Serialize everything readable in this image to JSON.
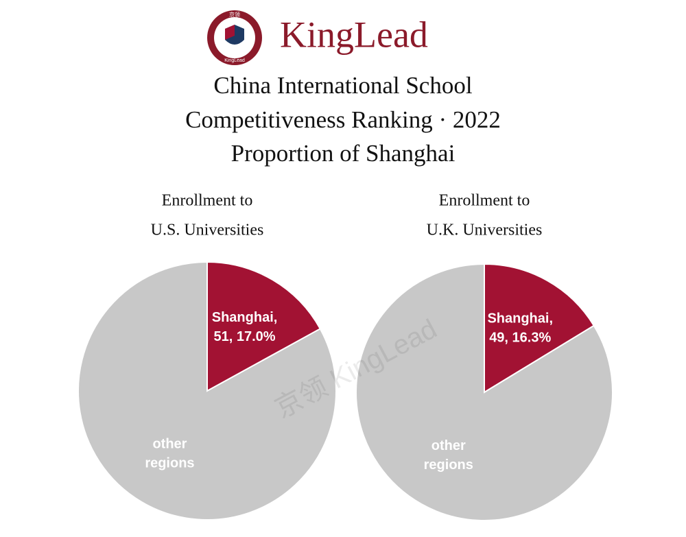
{
  "header": {
    "brand": "KingLead",
    "logo_top": "京领",
    "logo_bottom": "KingLead",
    "title": [
      "China International School",
      "Competitiveness Ranking · 2022",
      "Proportion of Shanghai"
    ],
    "watermark": "京领  KingLead"
  },
  "chart_data": [
    {
      "type": "pie",
      "title": [
        "Enrollment to",
        "U.S. Universities"
      ],
      "categories": [
        "Shanghai",
        "other regions"
      ],
      "values": [
        17.0,
        83.0
      ],
      "label_lines": [
        [
          "Shanghai,",
          "51, 17.0%"
        ],
        [
          "other",
          "regions"
        ]
      ],
      "colors": [
        "#a21233",
        "#c8c8c8"
      ]
    },
    {
      "type": "pie",
      "title": [
        "Enrollment to",
        "U.K. Universities"
      ],
      "categories": [
        "Shanghai",
        "other regions"
      ],
      "values": [
        16.3,
        83.7
      ],
      "label_lines": [
        [
          "Shanghai,",
          "49, 16.3%"
        ],
        [
          "other",
          "regions"
        ]
      ],
      "colors": [
        "#a21233",
        "#c8c8c8"
      ]
    }
  ]
}
